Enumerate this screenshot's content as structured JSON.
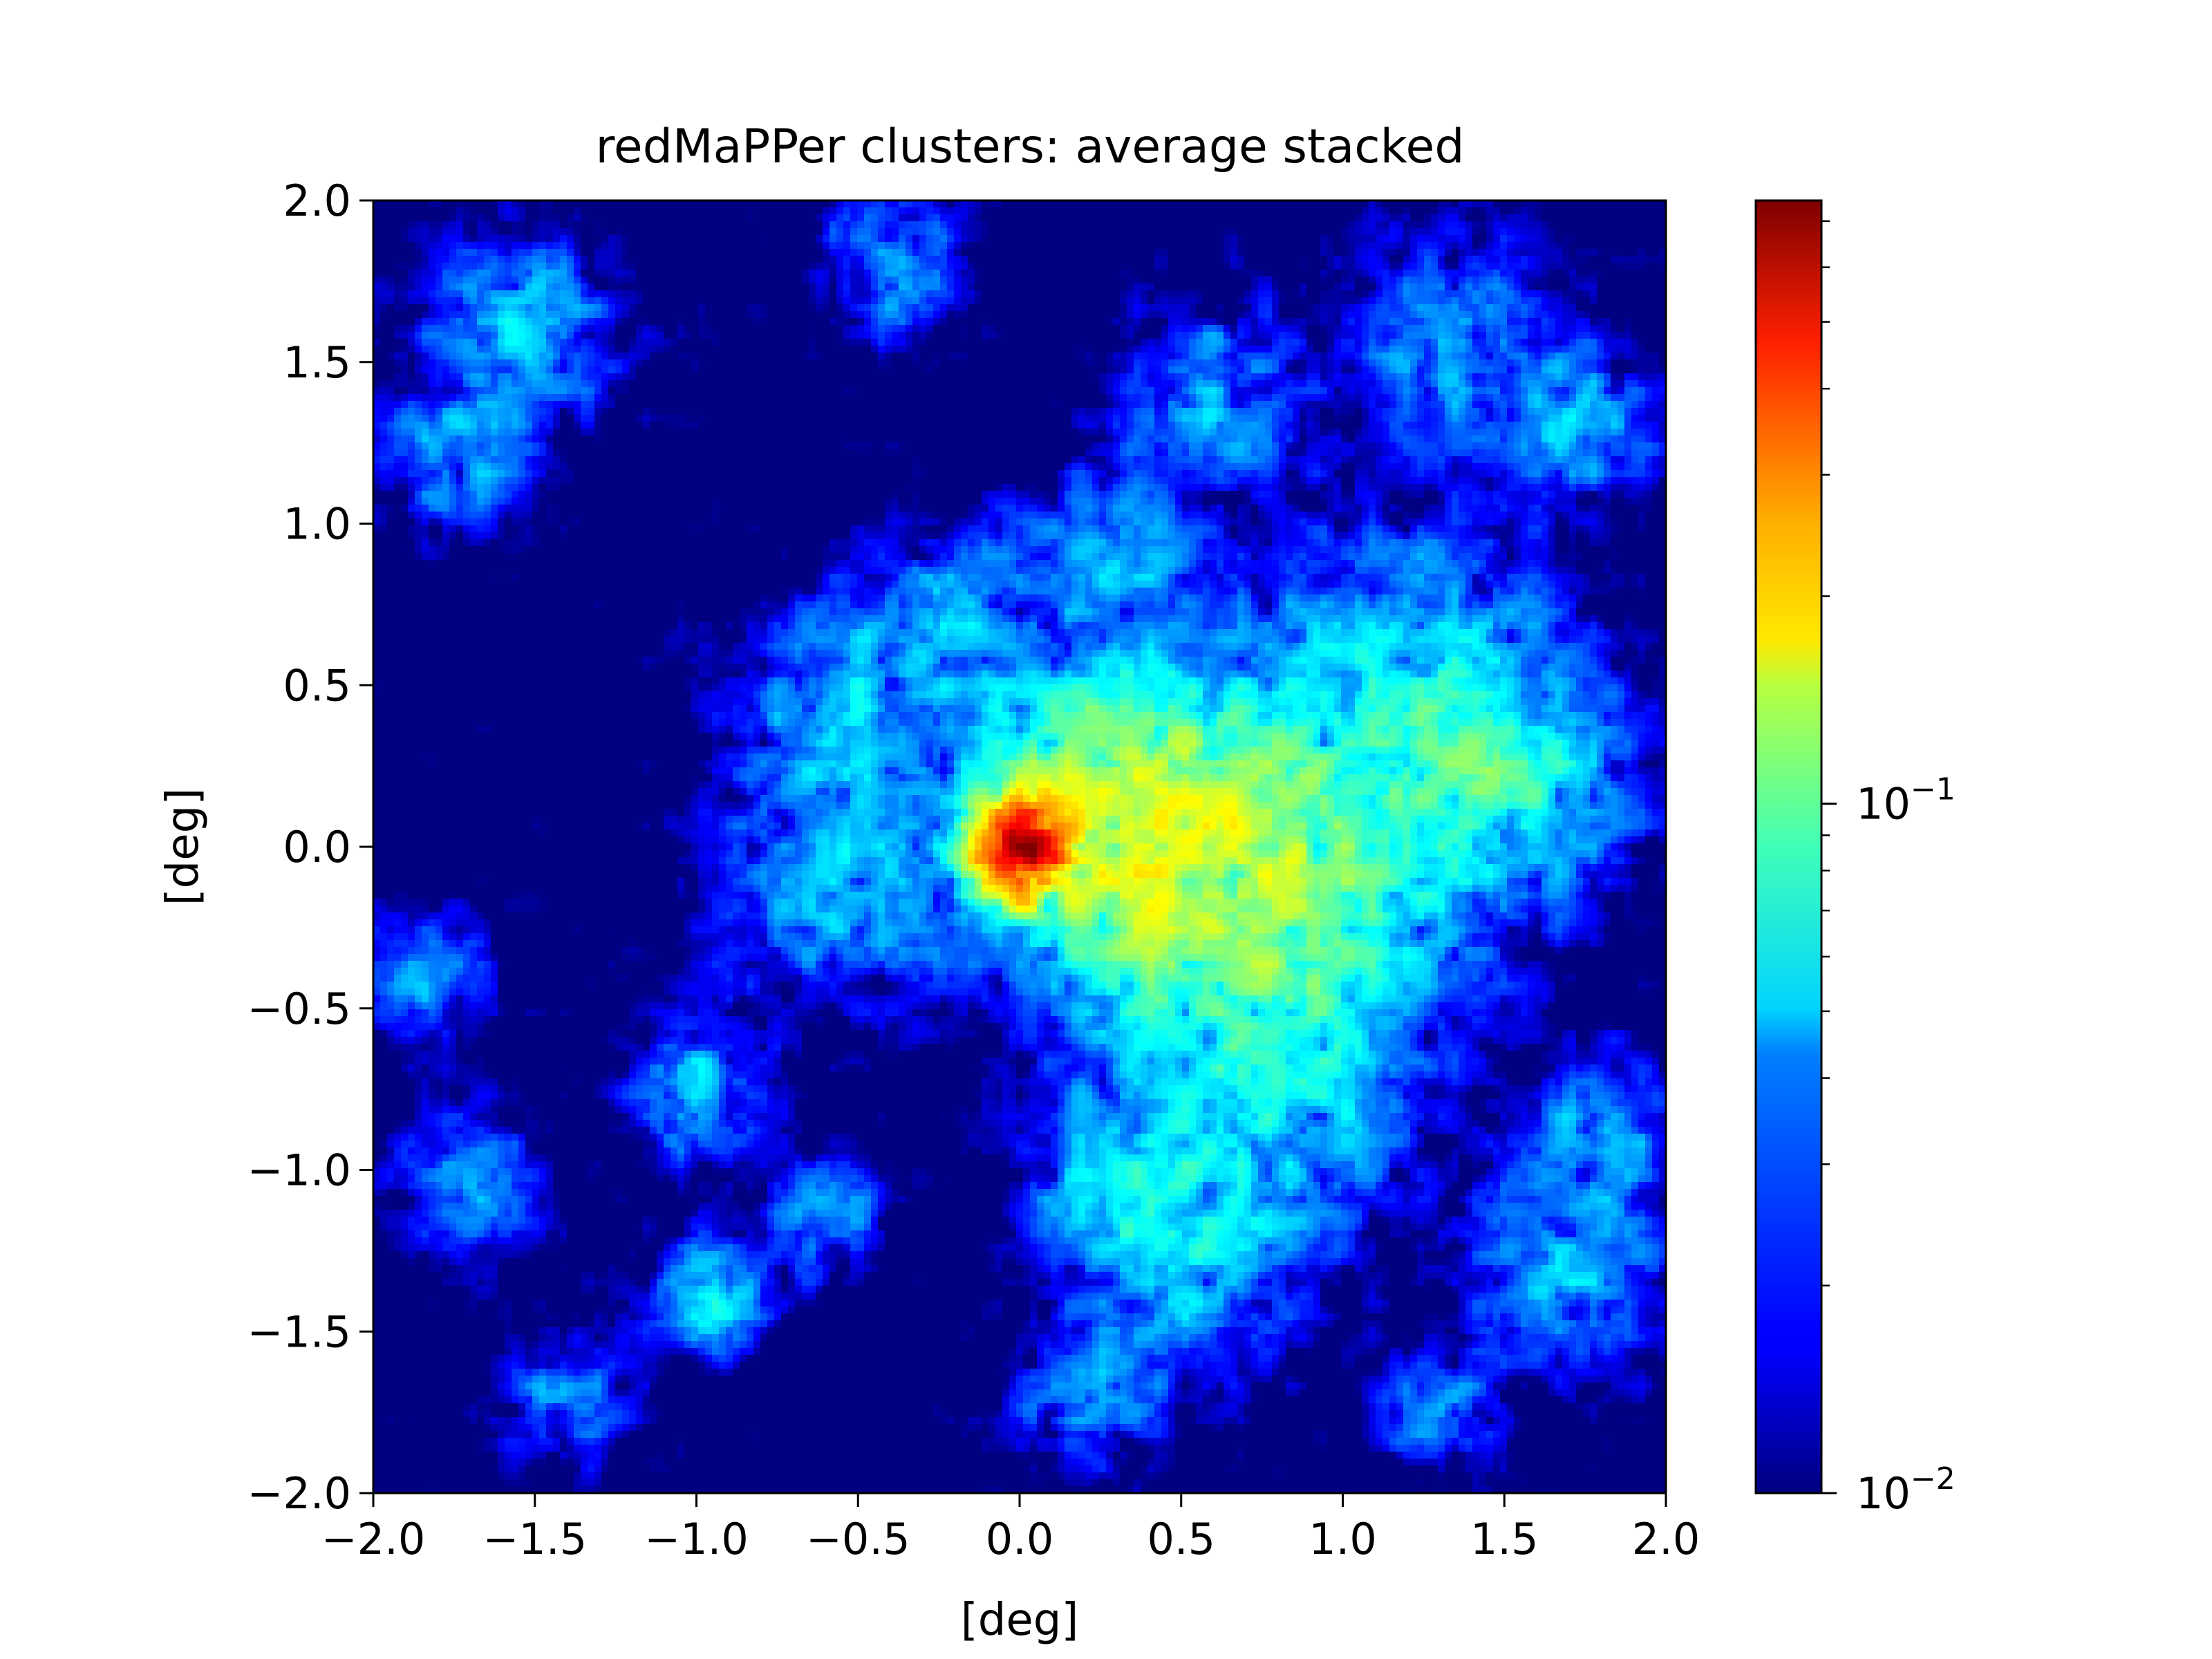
{
  "chart_data": {
    "type": "heatmap",
    "title": "redMaPPer clusters: average stacked",
    "xlabel": "[deg]",
    "ylabel": "[deg]",
    "xlim": [
      -2.0,
      2.0
    ],
    "ylim": [
      -2.0,
      2.0
    ],
    "xticks": [
      -2.0,
      -1.5,
      -1.0,
      -0.5,
      0.0,
      0.5,
      1.0,
      1.5,
      2.0
    ],
    "yticks": [
      -2.0,
      -1.5,
      -1.0,
      -0.5,
      0.0,
      0.5,
      1.0,
      1.5,
      2.0
    ],
    "xtick_labels": [
      "−2.0",
      "−1.5",
      "−1.0",
      "−0.5",
      "0.0",
      "0.5",
      "1.0",
      "1.5",
      "2.0"
    ],
    "ytick_labels": [
      "−2.0",
      "−1.5",
      "−1.0",
      "−0.5",
      "0.0",
      "0.5",
      "1.0",
      "1.5",
      "2.0"
    ],
    "grid": false,
    "colormap": "jet",
    "color_scale": "log",
    "colorbar": {
      "range": [
        0.01,
        0.75
      ],
      "major_ticks": [
        {
          "value": 0.01,
          "base": "10",
          "exp": "−2"
        },
        {
          "value": 0.1,
          "base": "10",
          "exp": "−1"
        }
      ],
      "minor_ticks": [
        0.02,
        0.03,
        0.04,
        0.05,
        0.06,
        0.07,
        0.08,
        0.09,
        0.2,
        0.3,
        0.4,
        0.5,
        0.6,
        0.7
      ]
    },
    "peak": {
      "x": 0.0,
      "y": 0.0,
      "value": 0.75
    },
    "features": [
      {
        "x": 0.0,
        "y": 0.0,
        "sigma": 0.09,
        "value": 0.72
      },
      {
        "x": 0.45,
        "y": -0.02,
        "sigma": 0.32,
        "value": 0.09
      },
      {
        "x": 0.85,
        "y": -0.15,
        "sigma": 0.35,
        "value": 0.06
      },
      {
        "x": 0.25,
        "y": 0.2,
        "sigma": 0.25,
        "value": 0.05
      },
      {
        "x": 1.2,
        "y": 0.55,
        "sigma": 0.3,
        "value": 0.04
      },
      {
        "x": 1.5,
        "y": 0.2,
        "sigma": 0.25,
        "value": 0.045
      },
      {
        "x": 0.75,
        "y": -0.85,
        "sigma": 0.3,
        "value": 0.035
      },
      {
        "x": 0.3,
        "y": -1.05,
        "sigma": 0.18,
        "value": 0.035
      },
      {
        "x": 0.55,
        "y": -1.35,
        "sigma": 0.2,
        "value": 0.03
      },
      {
        "x": 0.2,
        "y": -1.7,
        "sigma": 0.15,
        "value": 0.03
      },
      {
        "x": -0.55,
        "y": -0.1,
        "sigma": 0.25,
        "value": 0.035
      },
      {
        "x": -0.6,
        "y": 0.45,
        "sigma": 0.2,
        "value": 0.03
      },
      {
        "x": -0.2,
        "y": 0.7,
        "sigma": 0.2,
        "value": 0.03
      },
      {
        "x": 0.3,
        "y": 0.9,
        "sigma": 0.18,
        "value": 0.03
      },
      {
        "x": 0.6,
        "y": 1.4,
        "sigma": 0.2,
        "value": 0.03
      },
      {
        "x": 1.35,
        "y": 1.55,
        "sigma": 0.22,
        "value": 0.03
      },
      {
        "x": 1.75,
        "y": 1.3,
        "sigma": 0.15,
        "value": 0.035
      },
      {
        "x": 1.7,
        "y": -1.3,
        "sigma": 0.2,
        "value": 0.035
      },
      {
        "x": 1.8,
        "y": -0.85,
        "sigma": 0.15,
        "value": 0.03
      },
      {
        "x": -1.55,
        "y": 1.6,
        "sigma": 0.2,
        "value": 0.035
      },
      {
        "x": -1.75,
        "y": 1.2,
        "sigma": 0.15,
        "value": 0.03
      },
      {
        "x": -1.0,
        "y": -0.75,
        "sigma": 0.15,
        "value": 0.035
      },
      {
        "x": -0.95,
        "y": -1.4,
        "sigma": 0.12,
        "value": 0.045
      },
      {
        "x": -1.7,
        "y": -1.05,
        "sigma": 0.15,
        "value": 0.03
      },
      {
        "x": -1.85,
        "y": -0.4,
        "sigma": 0.13,
        "value": 0.03
      },
      {
        "x": -0.6,
        "y": -1.15,
        "sigma": 0.12,
        "value": 0.03
      },
      {
        "x": -0.4,
        "y": 1.8,
        "sigma": 0.15,
        "value": 0.03
      },
      {
        "x": -1.4,
        "y": -1.7,
        "sigma": 0.14,
        "value": 0.025
      },
      {
        "x": 1.3,
        "y": -1.75,
        "sigma": 0.12,
        "value": 0.028
      }
    ]
  }
}
